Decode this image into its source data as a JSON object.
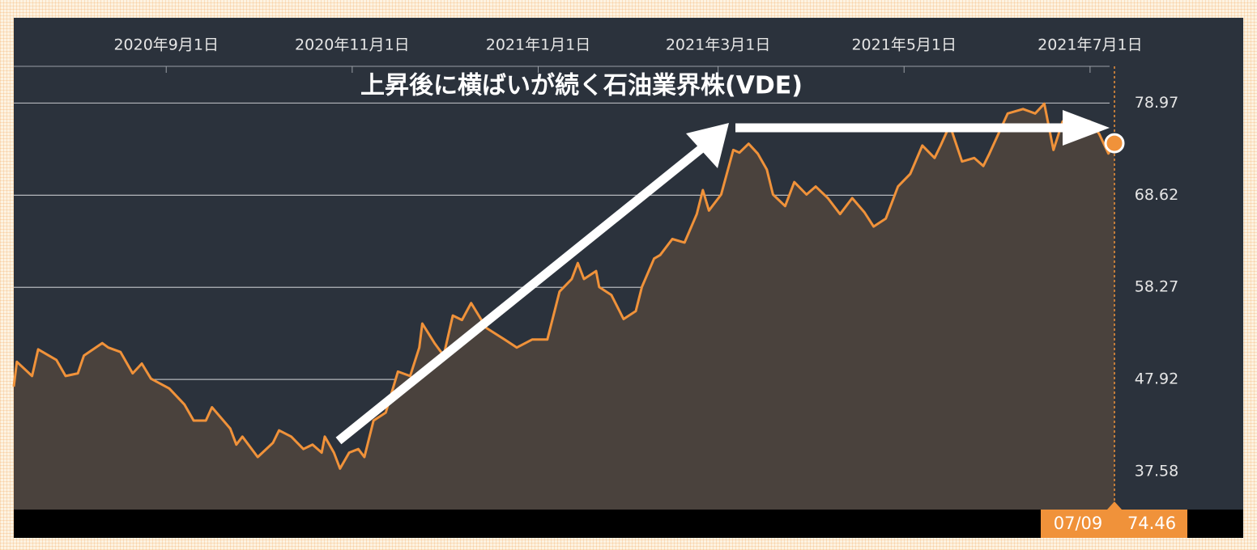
{
  "chart_data": {
    "type": "area",
    "title": "上昇後に横ばいが続く石油業界株(VDE)",
    "x": [
      "2020-07-13",
      "2020-07-14",
      "2020-07-19",
      "2020-07-21",
      "2020-07-27",
      "2020-07-30",
      "2020-08-03",
      "2020-08-05",
      "2020-08-11",
      "2020-08-13",
      "2020-08-17",
      "2020-08-21",
      "2020-08-24",
      "2020-08-27",
      "2020-09-02",
      "2020-09-07",
      "2020-09-10",
      "2020-09-14",
      "2020-09-16",
      "2020-09-22",
      "2020-09-24",
      "2020-09-26",
      "2020-10-01",
      "2020-10-06",
      "2020-10-08",
      "2020-10-12",
      "2020-10-16",
      "2020-10-19",
      "2020-10-22",
      "2020-10-23",
      "2020-10-26",
      "2020-10-28",
      "2020-10-31",
      "2020-11-03",
      "2020-11-05",
      "2020-11-08",
      "2020-11-12",
      "2020-11-16",
      "2020-11-20",
      "2020-11-23",
      "2020-11-24",
      "2020-11-28",
      "2020-12-01",
      "2020-12-04",
      "2020-12-07",
      "2020-12-10",
      "2020-12-15",
      "2020-12-21",
      "2020-12-25",
      "2020-12-30",
      "2021-01-04",
      "2021-01-08",
      "2021-01-12",
      "2021-01-14",
      "2021-01-16",
      "2021-01-20",
      "2021-01-21",
      "2021-01-25",
      "2021-01-29",
      "2021-02-02",
      "2021-02-04",
      "2021-02-08",
      "2021-02-10",
      "2021-02-14",
      "2021-02-18",
      "2021-02-22",
      "2021-02-24",
      "2021-02-26",
      "2021-03-02",
      "2021-03-06",
      "2021-03-08",
      "2021-03-11",
      "2021-03-14",
      "2021-03-17",
      "2021-03-19",
      "2021-03-23",
      "2021-03-26",
      "2021-03-30",
      "2021-04-02",
      "2021-04-06",
      "2021-04-10",
      "2021-04-14",
      "2021-04-18",
      "2021-04-21",
      "2021-04-25",
      "2021-04-29",
      "2021-05-03",
      "2021-05-07",
      "2021-05-11",
      "2021-05-13",
      "2021-05-16",
      "2021-05-20",
      "2021-05-24",
      "2021-05-27",
      "2021-05-29",
      "2021-06-04",
      "2021-06-09",
      "2021-06-13",
      "2021-06-16",
      "2021-06-19",
      "2021-06-22",
      "2021-06-26",
      "2021-07-01",
      "2021-07-04",
      "2021-07-07",
      "2021-07-09"
    ],
    "series": [
      {
        "color": "#f0923a",
        "values": [
          47.1,
          49.9,
          48.3,
          51.3,
          50.1,
          48.3,
          48.6,
          50.6,
          52.0,
          51.5,
          51.0,
          48.6,
          49.7,
          48.0,
          46.9,
          45.1,
          43.3,
          43.3,
          44.8,
          42.4,
          40.6,
          41.5,
          39.2,
          40.8,
          42.2,
          41.5,
          40.1,
          40.6,
          39.7,
          41.5,
          39.7,
          37.9,
          39.7,
          40.1,
          39.2,
          43.3,
          44.2,
          48.8,
          48.3,
          51.5,
          54.2,
          52.0,
          50.6,
          55.1,
          54.6,
          56.5,
          53.7,
          52.4,
          51.5,
          52.4,
          52.4,
          57.8,
          59.2,
          61.0,
          59.2,
          60.1,
          58.3,
          57.4,
          54.7,
          55.6,
          58.3,
          61.5,
          61.9,
          63.7,
          63.3,
          66.5,
          69.2,
          66.9,
          68.7,
          73.7,
          73.4,
          74.4,
          73.3,
          71.5,
          68.7,
          67.4,
          70.1,
          68.7,
          69.6,
          68.3,
          66.5,
          68.3,
          66.7,
          65.1,
          66.0,
          69.6,
          71.0,
          74.2,
          72.8,
          74.2,
          76.5,
          72.4,
          72.8,
          71.9,
          73.3,
          77.8,
          78.3,
          77.8,
          78.9,
          73.7,
          76.9,
          77.4,
          76.9,
          75.5,
          73.3,
          74.46
        ]
      }
    ],
    "xlim": [
      "2020-07-13",
      "2021-07-09"
    ],
    "xticks": [
      {
        "value": "2020-09-01",
        "label": "2020年9月1日"
      },
      {
        "value": "2020-11-01",
        "label": "2020年11月1日"
      },
      {
        "value": "2021-01-01",
        "label": "2021年1月1日"
      },
      {
        "value": "2021-03-01",
        "label": "2021年3月1日"
      },
      {
        "value": "2021-05-01",
        "label": "2021年5月1日"
      },
      {
        "value": "2021-07-01",
        "label": "2021年7月1日"
      }
    ],
    "ylim": [
      33.3,
      83.1
    ],
    "yticks": [
      37.58,
      47.92,
      58.27,
      68.62,
      78.97
    ],
    "grid": true,
    "cursor_date_label": "07/09"
  }
}
